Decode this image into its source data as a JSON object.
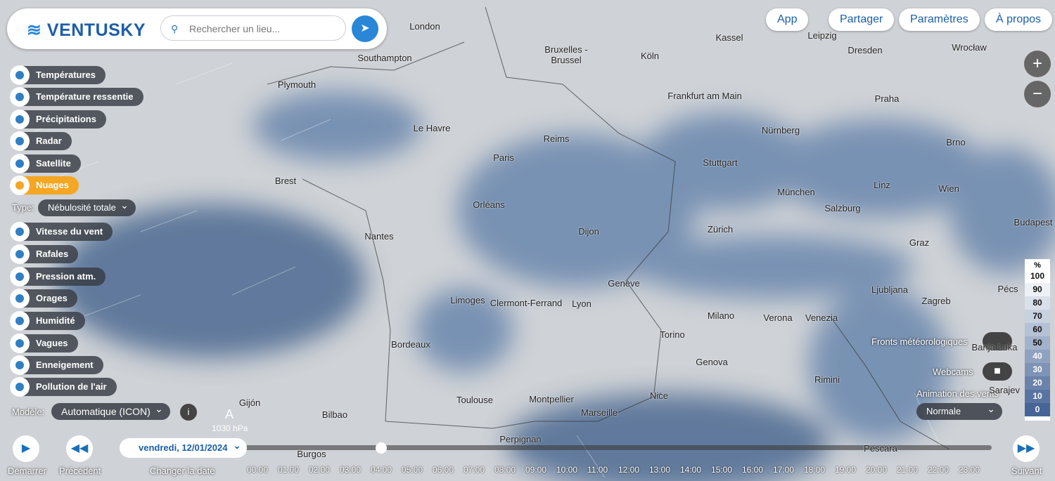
{
  "header": {
    "logo": "VENTUSKY",
    "search_placeholder": "Rechercher un lieu..."
  },
  "top_buttons": [
    "App",
    "Partager",
    "Paramètres",
    "À propos"
  ],
  "zoom": {
    "in": "+",
    "out": "−"
  },
  "layers_top": [
    "Températures",
    "Température ressentie",
    "Précipitations",
    "Radar",
    "Satellite",
    "Nuages"
  ],
  "active_layer": "Nuages",
  "type_selector": {
    "label": "Type:",
    "value": "Nébulosité totale"
  },
  "layers_bottom": [
    "Vitesse du vent",
    "Rafales",
    "Pression atm.",
    "Orages",
    "Humidité",
    "Vagues",
    "Enneigement",
    "Pollution de l'air"
  ],
  "model_selector": {
    "label": "Modèle:",
    "value": "Automatique (ICON)",
    "info": "i"
  },
  "pressure_marker": {
    "symbol": "A",
    "value": "1030 hPa"
  },
  "cities": [
    "London",
    "Southampton",
    "Plymouth",
    "Bruxelles - Brussel",
    "Kassel",
    "Leipzig",
    "Dresden",
    "Wrocław",
    "Köln",
    "Frankfurt am Main",
    "Praha",
    "Le Havre",
    "Reims",
    "Nürnberg",
    "Brno",
    "Paris",
    "Stuttgart",
    "Brest",
    "Linz",
    "Wien",
    "München",
    "Salzburg",
    "Orléans",
    "Budapest",
    "Nantes",
    "Dijon",
    "Zürich",
    "Graz",
    "Genève",
    "Limoges",
    "Clermont-Ferrand",
    "Lyon",
    "Ljubljana",
    "Zagreb",
    "Pécs",
    "Milano",
    "Verona",
    "Venezia",
    "Torino",
    "Bordeaux",
    "Banja Luka",
    "Genova",
    "Rimini",
    "Sarajev",
    "Nice",
    "Toulouse",
    "Montpellier",
    "Marseille",
    "Gijón",
    "Bilbao",
    "Perpignan",
    "Burgos",
    "Pescara"
  ],
  "legend": {
    "unit": "%",
    "values": [
      100,
      90,
      80,
      70,
      60,
      50,
      40,
      30,
      20,
      10,
      0
    ]
  },
  "right_controls": {
    "fronts": "Fronts météorologiques",
    "webcams": "Webcams",
    "animation_label": "Animation des vents",
    "animation_value": "Normale"
  },
  "timeline": {
    "date": "vendredi, 12/01/2024",
    "start": "Démarrer",
    "previous": "Précédent",
    "change_date": "Changer la date",
    "next": "Suivant",
    "hours": [
      "00:00",
      "01:00",
      "02:00",
      "03:00",
      "04:00",
      "05:00",
      "06:00",
      "07:00",
      "08:00",
      "09:00",
      "10:00",
      "11:00",
      "12:00",
      "13:00",
      "14:00",
      "15:00",
      "16:00",
      "17:00",
      "18:00",
      "19:00",
      "20:00",
      "21:00",
      "22:00",
      "23:00"
    ]
  }
}
